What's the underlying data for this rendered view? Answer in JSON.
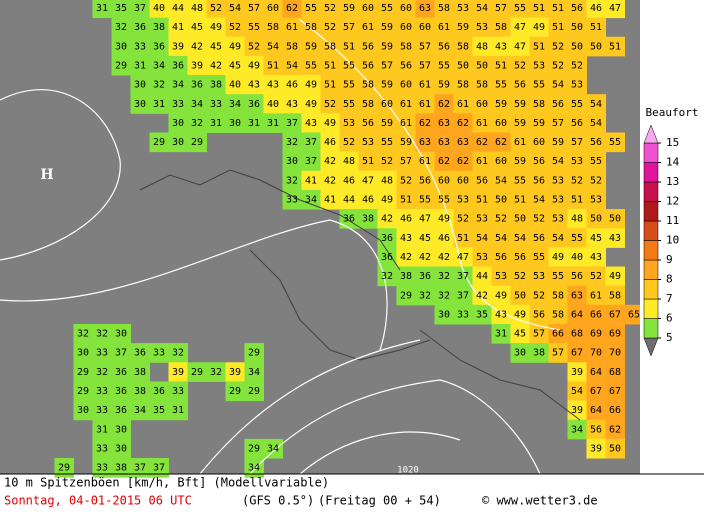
{
  "map": {
    "grid": {
      "rows": [
        [
          null,
          null,
          null,
          null,
          null,
          31,
          35,
          37,
          40,
          44,
          48,
          52,
          54,
          57,
          60,
          62,
          55,
          52,
          59,
          60,
          55,
          60,
          63,
          58,
          53,
          54,
          57,
          55,
          51,
          51,
          56,
          46,
          47
        ],
        [
          null,
          null,
          null,
          null,
          null,
          null,
          32,
          36,
          38,
          41,
          45,
          49,
          52,
          55,
          58,
          61,
          58,
          52,
          57,
          61,
          59,
          60,
          60,
          61,
          59,
          53,
          58,
          47,
          49,
          51,
          50,
          51
        ],
        [
          null,
          null,
          null,
          null,
          null,
          null,
          30,
          33,
          36,
          39,
          42,
          45,
          49,
          52,
          54,
          58,
          59,
          58,
          51,
          56,
          59,
          58,
          57,
          56,
          58,
          48,
          43,
          47,
          51,
          52,
          50,
          50,
          51
        ],
        [
          null,
          null,
          null,
          null,
          null,
          null,
          29,
          31,
          34,
          36,
          39,
          42,
          45,
          49,
          51,
          54,
          55,
          51,
          55,
          56,
          57,
          56,
          57,
          55,
          50,
          50,
          51,
          52,
          53,
          52,
          52
        ],
        [
          null,
          null,
          null,
          null,
          null,
          null,
          null,
          30,
          32,
          34,
          36,
          38,
          40,
          43,
          43,
          46,
          49,
          51,
          55,
          58,
          59,
          60,
          61,
          59,
          58,
          58,
          55,
          56,
          55,
          54,
          53
        ],
        [
          null,
          null,
          null,
          null,
          null,
          null,
          null,
          30,
          31,
          33,
          34,
          33,
          34,
          36,
          40,
          43,
          49,
          52,
          55,
          58,
          60,
          61,
          61,
          62,
          61,
          60,
          59,
          59,
          58,
          56,
          55,
          54
        ],
        [
          null,
          null,
          null,
          null,
          null,
          null,
          null,
          null,
          null,
          30,
          32,
          31,
          30,
          31,
          31,
          37,
          43,
          49,
          53,
          56,
          59,
          61,
          62,
          63,
          62,
          61,
          60,
          59,
          59,
          57,
          56,
          54
        ],
        [
          null,
          null,
          null,
          null,
          null,
          null,
          null,
          null,
          29,
          30,
          29,
          null,
          null,
          null,
          null,
          32,
          37,
          46,
          52,
          53,
          55,
          59,
          63,
          63,
          63,
          62,
          62,
          61,
          60,
          59,
          57,
          56,
          55
        ],
        [
          null,
          null,
          null,
          null,
          null,
          null,
          null,
          null,
          null,
          null,
          null,
          null,
          null,
          null,
          null,
          30,
          37,
          42,
          48,
          51,
          52,
          57,
          61,
          62,
          62,
          61,
          60,
          59,
          56,
          54,
          53,
          55
        ],
        [
          null,
          null,
          null,
          null,
          null,
          null,
          null,
          null,
          null,
          null,
          null,
          null,
          null,
          null,
          null,
          32,
          41,
          42,
          46,
          47,
          48,
          52,
          56,
          60,
          60,
          56,
          54,
          55,
          56,
          53,
          52,
          52
        ],
        [
          null,
          null,
          null,
          null,
          null,
          null,
          null,
          null,
          null,
          null,
          null,
          null,
          null,
          null,
          null,
          33,
          34,
          41,
          44,
          46,
          49,
          51,
          55,
          55,
          53,
          51,
          50,
          51,
          54,
          53,
          51,
          53
        ],
        [
          null,
          null,
          null,
          null,
          null,
          null,
          null,
          null,
          null,
          null,
          null,
          null,
          null,
          null,
          null,
          null,
          null,
          null,
          36,
          38,
          42,
          46,
          47,
          49,
          52,
          53,
          52,
          50,
          52,
          53,
          48,
          50,
          50
        ],
        [
          null,
          null,
          null,
          null,
          null,
          null,
          null,
          null,
          null,
          null,
          null,
          null,
          null,
          null,
          null,
          null,
          null,
          null,
          null,
          null,
          36,
          43,
          45,
          46,
          51,
          54,
          54,
          54,
          56,
          54,
          55,
          45,
          43
        ],
        [
          null,
          null,
          null,
          null,
          null,
          null,
          null,
          null,
          null,
          null,
          null,
          null,
          null,
          null,
          null,
          null,
          null,
          null,
          null,
          null,
          36,
          42,
          42,
          42,
          47,
          53,
          56,
          56,
          55,
          49,
          40,
          43
        ],
        [
          null,
          null,
          null,
          null,
          null,
          null,
          null,
          null,
          null,
          null,
          null,
          null,
          null,
          null,
          null,
          null,
          null,
          null,
          null,
          null,
          32,
          38,
          36,
          32,
          37,
          44,
          53,
          52,
          53,
          55,
          56,
          52,
          49
        ],
        [
          null,
          null,
          null,
          null,
          null,
          null,
          null,
          null,
          null,
          null,
          null,
          null,
          null,
          null,
          null,
          null,
          null,
          null,
          null,
          null,
          null,
          29,
          32,
          32,
          37,
          42,
          49,
          50,
          52,
          58,
          63,
          61,
          58
        ],
        [
          null,
          null,
          null,
          null,
          null,
          null,
          null,
          null,
          null,
          null,
          null,
          null,
          null,
          null,
          null,
          null,
          null,
          null,
          null,
          null,
          null,
          null,
          null,
          30,
          33,
          35,
          43,
          49,
          56,
          58,
          64,
          66,
          67,
          65
        ],
        [
          null,
          null,
          null,
          null,
          32,
          32,
          30,
          null,
          null,
          null,
          null,
          null,
          null,
          null,
          null,
          null,
          null,
          null,
          null,
          null,
          null,
          null,
          null,
          null,
          null,
          null,
          31,
          45,
          57,
          66,
          68,
          69,
          69
        ],
        [
          null,
          null,
          null,
          null,
          30,
          33,
          37,
          36,
          33,
          32,
          null,
          null,
          null,
          29,
          null,
          null,
          null,
          null,
          null,
          null,
          null,
          null,
          null,
          null,
          null,
          null,
          null,
          30,
          38,
          57,
          67,
          70,
          70
        ],
        [
          null,
          null,
          null,
          null,
          29,
          32,
          36,
          38,
          null,
          39,
          29,
          32,
          39,
          34,
          null,
          null,
          null,
          null,
          null,
          null,
          null,
          null,
          null,
          null,
          null,
          null,
          null,
          null,
          null,
          null,
          39,
          64,
          68
        ],
        [
          null,
          null,
          null,
          null,
          29,
          33,
          36,
          38,
          36,
          33,
          null,
          null,
          29,
          29,
          null,
          null,
          null,
          null,
          null,
          null,
          null,
          null,
          null,
          null,
          null,
          null,
          null,
          null,
          null,
          null,
          54,
          67,
          67
        ],
        [
          null,
          null,
          null,
          null,
          30,
          33,
          36,
          34,
          35,
          31,
          null,
          null,
          null,
          null,
          null,
          null,
          null,
          null,
          null,
          null,
          null,
          null,
          null,
          null,
          null,
          null,
          null,
          null,
          null,
          null,
          39,
          64,
          66
        ],
        [
          null,
          null,
          null,
          null,
          null,
          31,
          30,
          null,
          null,
          null,
          null,
          null,
          null,
          null,
          null,
          null,
          null,
          null,
          null,
          null,
          null,
          null,
          null,
          null,
          null,
          null,
          null,
          null,
          null,
          null,
          34,
          56,
          62
        ],
        [
          null,
          null,
          null,
          null,
          null,
          33,
          30,
          null,
          null,
          null,
          null,
          null,
          null,
          29,
          34,
          null,
          null,
          null,
          null,
          null,
          null,
          null,
          null,
          null,
          null,
          null,
          null,
          null,
          null,
          null,
          null,
          39,
          50
        ],
        [
          null,
          null,
          null,
          29,
          null,
          33,
          38,
          37,
          37,
          null,
          null,
          null,
          null,
          34
        ]
      ]
    },
    "high": "H",
    "isobar": "1020"
  },
  "legend": {
    "title": "Beaufort",
    "ticks": [
      5,
      6,
      7,
      8,
      9,
      10,
      11,
      12,
      13,
      14,
      15
    ],
    "colors": [
      "#6e6e6e",
      "#84e43c",
      "#ffea28",
      "#ffc81e",
      "#ffa51e",
      "#f57a14",
      "#d74a1a",
      "#b01a1a",
      "#c8104e",
      "#e2149c",
      "#f050d2",
      "#f8a8f0"
    ]
  },
  "footer": {
    "line1": "10 m Spitzenböen [km/h, Bft] (Modellvariable)",
    "date": "Sonntag, 04-01-2015  06 UTC",
    "model": "(GFS 0.5°)",
    "run": "(Freitag 00 + 54)",
    "source": "© www.wetter3.de"
  }
}
